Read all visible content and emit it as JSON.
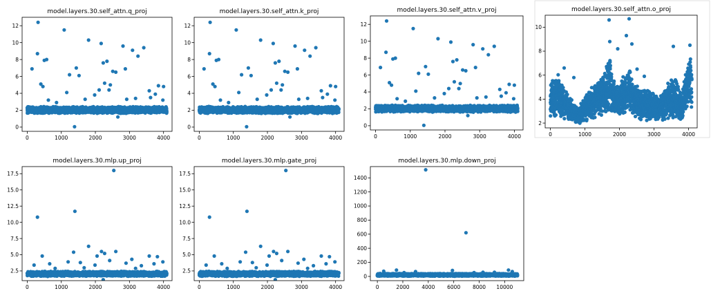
{
  "figure": {
    "point_color": "#1f77b4",
    "background": "#ffffff"
  },
  "chart_data": [
    {
      "type": "scatter",
      "title": "model.layers.30.self_attn.q_proj",
      "xlim": [
        -150,
        4250
      ],
      "ylim": [
        -0.5,
        13.0
      ],
      "xticks": [
        0,
        1000,
        2000,
        3000,
        4000
      ],
      "yticks": [
        0,
        2,
        4,
        6,
        8,
        10,
        12
      ],
      "x_count": 4096,
      "baseline": {
        "min": 1.6,
        "max": 2.45
      },
      "outliers": [
        [
          318,
          12.4
        ],
        [
          1085,
          11.5
        ],
        [
          1800,
          10.3
        ],
        [
          2170,
          9.9
        ],
        [
          2810,
          9.6
        ],
        [
          3090,
          9.1
        ],
        [
          3420,
          9.4
        ],
        [
          300,
          8.7
        ],
        [
          3250,
          8.4
        ],
        [
          140,
          6.9
        ],
        [
          500,
          7.9
        ],
        [
          570,
          8.0
        ],
        [
          1440,
          7.0
        ],
        [
          2230,
          7.6
        ],
        [
          2340,
          7.8
        ],
        [
          2600,
          6.5
        ],
        [
          2880,
          6.9
        ],
        [
          1240,
          6.2
        ],
        [
          1520,
          6.1
        ],
        [
          2510,
          6.6
        ],
        [
          400,
          5.1
        ],
        [
          460,
          4.8
        ],
        [
          2270,
          5.2
        ],
        [
          2440,
          5.0
        ],
        [
          2110,
          4.4
        ],
        [
          3850,
          4.9
        ],
        [
          4000,
          4.8
        ],
        [
          3580,
          4.3
        ],
        [
          1160,
          4.1
        ],
        [
          1980,
          3.8
        ],
        [
          2400,
          4.4
        ],
        [
          3760,
          3.9
        ],
        [
          620,
          3.2
        ],
        [
          860,
          2.9
        ],
        [
          1700,
          3.3
        ],
        [
          2920,
          3.3
        ],
        [
          3180,
          3.4
        ],
        [
          3620,
          3.5
        ],
        [
          3980,
          3.2
        ],
        [
          1390,
          0.05
        ],
        [
          2660,
          1.2
        ]
      ]
    },
    {
      "type": "scatter",
      "title": "model.layers.30.self_attn.k_proj",
      "xlim": [
        -150,
        4250
      ],
      "ylim": [
        -0.5,
        13.0
      ],
      "xticks": [
        0,
        1000,
        2000,
        3000,
        4000
      ],
      "yticks": [
        0,
        2,
        4,
        6,
        8,
        10,
        12
      ],
      "x_count": 4096,
      "baseline": {
        "min": 1.6,
        "max": 2.45
      },
      "outliers": [
        [
          318,
          12.4
        ],
        [
          1085,
          11.5
        ],
        [
          1800,
          10.3
        ],
        [
          2170,
          9.9
        ],
        [
          2810,
          9.6
        ],
        [
          3090,
          9.1
        ],
        [
          3420,
          9.4
        ],
        [
          300,
          8.7
        ],
        [
          3250,
          8.4
        ],
        [
          140,
          6.9
        ],
        [
          500,
          7.9
        ],
        [
          570,
          8.0
        ],
        [
          1440,
          7.0
        ],
        [
          2230,
          7.6
        ],
        [
          2340,
          7.8
        ],
        [
          2600,
          6.5
        ],
        [
          2880,
          6.9
        ],
        [
          1240,
          6.2
        ],
        [
          1520,
          6.1
        ],
        [
          2510,
          6.6
        ],
        [
          400,
          5.1
        ],
        [
          460,
          4.8
        ],
        [
          2270,
          5.2
        ],
        [
          2440,
          5.0
        ],
        [
          2110,
          4.4
        ],
        [
          3850,
          4.9
        ],
        [
          4000,
          4.8
        ],
        [
          3580,
          4.3
        ],
        [
          1160,
          4.1
        ],
        [
          1980,
          3.8
        ],
        [
          2400,
          4.4
        ],
        [
          3760,
          3.9
        ],
        [
          620,
          3.2
        ],
        [
          860,
          2.9
        ],
        [
          1700,
          3.3
        ],
        [
          2920,
          3.3
        ],
        [
          3180,
          3.4
        ],
        [
          3620,
          3.5
        ],
        [
          3980,
          3.2
        ],
        [
          1390,
          0.05
        ],
        [
          2660,
          1.2
        ]
      ]
    },
    {
      "type": "scatter",
      "title": "model.layers.30.self_attn.v_proj",
      "xlim": [
        -150,
        4250
      ],
      "ylim": [
        -0.5,
        13.0
      ],
      "xticks": [
        0,
        1000,
        2000,
        3000,
        4000
      ],
      "yticks": [
        0,
        2,
        4,
        6,
        8,
        10,
        12
      ],
      "x_count": 4096,
      "baseline": {
        "min": 1.6,
        "max": 2.45
      },
      "outliers": [
        [
          318,
          12.4
        ],
        [
          1085,
          11.5
        ],
        [
          1800,
          10.3
        ],
        [
          2170,
          9.9
        ],
        [
          2810,
          9.6
        ],
        [
          3090,
          9.1
        ],
        [
          3420,
          9.4
        ],
        [
          300,
          8.7
        ],
        [
          3250,
          8.4
        ],
        [
          140,
          6.9
        ],
        [
          500,
          7.9
        ],
        [
          570,
          8.0
        ],
        [
          1440,
          7.0
        ],
        [
          2230,
          7.6
        ],
        [
          2340,
          7.8
        ],
        [
          2600,
          6.5
        ],
        [
          2880,
          6.9
        ],
        [
          1240,
          6.2
        ],
        [
          1520,
          6.1
        ],
        [
          2510,
          6.6
        ],
        [
          400,
          5.1
        ],
        [
          460,
          4.8
        ],
        [
          2270,
          5.2
        ],
        [
          2440,
          5.0
        ],
        [
          2110,
          4.4
        ],
        [
          3850,
          4.9
        ],
        [
          4000,
          4.8
        ],
        [
          3580,
          4.3
        ],
        [
          1160,
          4.1
        ],
        [
          1980,
          3.8
        ],
        [
          2400,
          4.4
        ],
        [
          3760,
          3.9
        ],
        [
          620,
          3.2
        ],
        [
          860,
          2.9
        ],
        [
          1700,
          3.3
        ],
        [
          2920,
          3.3
        ],
        [
          3180,
          3.4
        ],
        [
          3620,
          3.5
        ],
        [
          3980,
          3.2
        ],
        [
          1390,
          0.05
        ],
        [
          2660,
          1.2
        ]
      ]
    },
    {
      "type": "scatter",
      "title": "model.layers.30.self_attn.o_proj",
      "xlim": [
        -150,
        4250
      ],
      "ylim": [
        1.6,
        11.0
      ],
      "xticks": [
        0,
        1000,
        2000,
        3000,
        4000
      ],
      "yticks": [
        2,
        4,
        6,
        8,
        10
      ],
      "x_count": 4096,
      "baseline_profile": [
        [
          0,
          2.4,
          5.6
        ],
        [
          200,
          2.3,
          6.2
        ],
        [
          400,
          2.2,
          5.2
        ],
        [
          600,
          2.0,
          4.2
        ],
        [
          800,
          1.9,
          3.2
        ],
        [
          1000,
          2.1,
          4.4
        ],
        [
          1200,
          2.3,
          5.2
        ],
        [
          1400,
          2.4,
          5.6
        ],
        [
          1600,
          2.5,
          6.6
        ],
        [
          1700,
          2.8,
          8.4
        ],
        [
          1800,
          2.6,
          6.2
        ],
        [
          2000,
          2.4,
          5.4
        ],
        [
          2200,
          2.6,
          6.6
        ],
        [
          2300,
          2.6,
          6.8
        ],
        [
          2400,
          2.5,
          5.6
        ],
        [
          2600,
          2.3,
          4.9
        ],
        [
          2800,
          2.1,
          5.2
        ],
        [
          3000,
          2.2,
          4.6
        ],
        [
          3200,
          2.1,
          4.4
        ],
        [
          3400,
          2.3,
          5.4
        ],
        [
          3600,
          2.2,
          6.2
        ],
        [
          3800,
          2.1,
          4.3
        ],
        [
          3950,
          2.7,
          6.8
        ],
        [
          4050,
          3.2,
          8.2
        ],
        [
          4095,
          2.8,
          6.0
        ]
      ],
      "outliers": [
        [
          1700,
          10.6
        ],
        [
          2280,
          10.7
        ],
        [
          2200,
          9.3
        ],
        [
          1720,
          8.8
        ],
        [
          1950,
          8.2
        ],
        [
          2360,
          8.6
        ],
        [
          3560,
          8.4
        ],
        [
          4040,
          8.5
        ],
        [
          400,
          6.6
        ],
        [
          2510,
          6.5
        ],
        [
          680,
          5.8
        ],
        [
          2720,
          5.9
        ]
      ]
    },
    {
      "type": "scatter",
      "title": "model.layers.30.mlp.up_proj",
      "xlim": [
        -150,
        4250
      ],
      "ylim": [
        1.0,
        18.6
      ],
      "xticks": [
        0,
        1000,
        2000,
        3000,
        4000
      ],
      "yticks": [
        2.5,
        5.0,
        7.5,
        10.0,
        12.5,
        15.0,
        17.5
      ],
      "ytick_labels": [
        "2.5",
        "5.0",
        "7.5",
        "10.0",
        "12.5",
        "15.0",
        "17.5"
      ],
      "x_count": 4096,
      "baseline": {
        "min": 1.65,
        "max": 2.45
      },
      "outliers": [
        [
          2540,
          18.0
        ],
        [
          1400,
          11.7
        ],
        [
          300,
          10.8
        ],
        [
          1800,
          6.3
        ],
        [
          1360,
          5.4
        ],
        [
          2600,
          5.5
        ],
        [
          2180,
          5.5
        ],
        [
          2270,
          5.2
        ],
        [
          440,
          4.8
        ],
        [
          2050,
          4.8
        ],
        [
          3820,
          4.7
        ],
        [
          3580,
          4.8
        ],
        [
          3070,
          4.3
        ],
        [
          3980,
          3.9
        ],
        [
          200,
          3.4
        ],
        [
          660,
          3.6
        ],
        [
          1200,
          3.9
        ],
        [
          1560,
          3.8
        ],
        [
          1990,
          3.4
        ],
        [
          2420,
          4.1
        ],
        [
          2900,
          3.7
        ],
        [
          3350,
          3.3
        ],
        [
          3720,
          3.6
        ],
        [
          820,
          2.9
        ],
        [
          1670,
          3.0
        ],
        [
          3180,
          2.9
        ],
        [
          2230,
          1.15
        ]
      ]
    },
    {
      "type": "scatter",
      "title": "model.layers.30.mlp.gate_proj",
      "xlim": [
        -150,
        4250
      ],
      "ylim": [
        1.0,
        18.6
      ],
      "xticks": [
        0,
        1000,
        2000,
        3000,
        4000
      ],
      "yticks": [
        2.5,
        5.0,
        7.5,
        10.0,
        12.5,
        15.0,
        17.5
      ],
      "ytick_labels": [
        "2.5",
        "5.0",
        "7.5",
        "10.0",
        "12.5",
        "15.0",
        "17.5"
      ],
      "x_count": 4096,
      "baseline": {
        "min": 1.65,
        "max": 2.45
      },
      "outliers": [
        [
          2540,
          18.0
        ],
        [
          1400,
          11.7
        ],
        [
          300,
          10.8
        ],
        [
          1800,
          6.3
        ],
        [
          1360,
          5.4
        ],
        [
          2600,
          5.5
        ],
        [
          2180,
          5.5
        ],
        [
          2270,
          5.2
        ],
        [
          440,
          4.8
        ],
        [
          2050,
          4.8
        ],
        [
          3820,
          4.7
        ],
        [
          3580,
          4.8
        ],
        [
          3070,
          4.3
        ],
        [
          3980,
          3.9
        ],
        [
          200,
          3.4
        ],
        [
          660,
          3.6
        ],
        [
          1200,
          3.9
        ],
        [
          1560,
          3.8
        ],
        [
          1990,
          3.4
        ],
        [
          2420,
          4.1
        ],
        [
          2900,
          3.7
        ],
        [
          3350,
          3.3
        ],
        [
          3720,
          3.6
        ],
        [
          820,
          2.9
        ],
        [
          1670,
          3.0
        ],
        [
          3180,
          2.9
        ],
        [
          2230,
          1.15
        ]
      ]
    },
    {
      "type": "scatter",
      "title": "model.layers.30.mlp.down_proj",
      "xlim": [
        -550,
        11500
      ],
      "ylim": [
        -60,
        1560
      ],
      "xticks": [
        0,
        2000,
        4000,
        6000,
        8000,
        10000
      ],
      "yticks": [
        0,
        200,
        400,
        600,
        800,
        1000,
        1200,
        1400
      ],
      "x_count": 11008,
      "baseline": {
        "min": 3,
        "max": 42
      },
      "outliers": [
        [
          3800,
          1515
        ],
        [
          6960,
          620
        ],
        [
          500,
          75
        ],
        [
          1500,
          90
        ],
        [
          3000,
          70
        ],
        [
          5900,
          85
        ],
        [
          8300,
          60
        ],
        [
          10300,
          90
        ],
        [
          10600,
          70
        ],
        [
          2100,
          55
        ],
        [
          7600,
          55
        ],
        [
          9200,
          60
        ]
      ]
    }
  ]
}
